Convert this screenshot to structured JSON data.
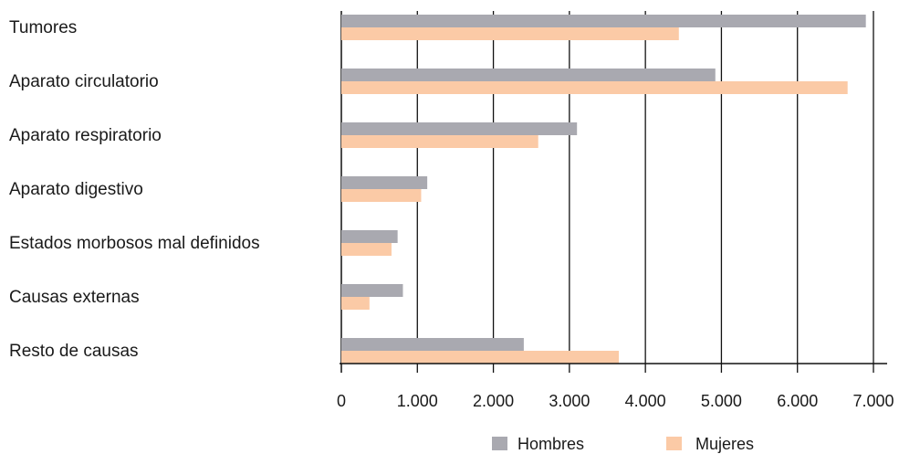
{
  "chart_data": {
    "type": "bar",
    "orientation": "horizontal",
    "categories": [
      "Tumores",
      "Aparato circulatorio",
      "Aparato respiratorio",
      "Aparato digestivo",
      "Estados morbosos mal definidos",
      "Causas externas",
      "Resto de causas"
    ],
    "series": [
      {
        "name": "Hombres",
        "color": "#a9a9b0",
        "values": [
          6900,
          4920,
          3100,
          1130,
          740,
          810,
          2400
        ]
      },
      {
        "name": "Mujeres",
        "color": "#fbcaa6",
        "values": [
          4440,
          6660,
          2590,
          1050,
          660,
          370,
          3650
        ]
      }
    ],
    "xlim": [
      0,
      7000
    ],
    "xticks": [
      0,
      1000,
      2000,
      3000,
      4000,
      5000,
      6000,
      7000
    ],
    "xtick_labels": [
      "0",
      "1.000",
      "2.000",
      "3.000",
      "4.000",
      "5.000",
      "6.000",
      "7.000"
    ],
    "grid": "vertical",
    "legend_position": "bottom-right",
    "title": "",
    "xlabel": "",
    "ylabel": ""
  }
}
